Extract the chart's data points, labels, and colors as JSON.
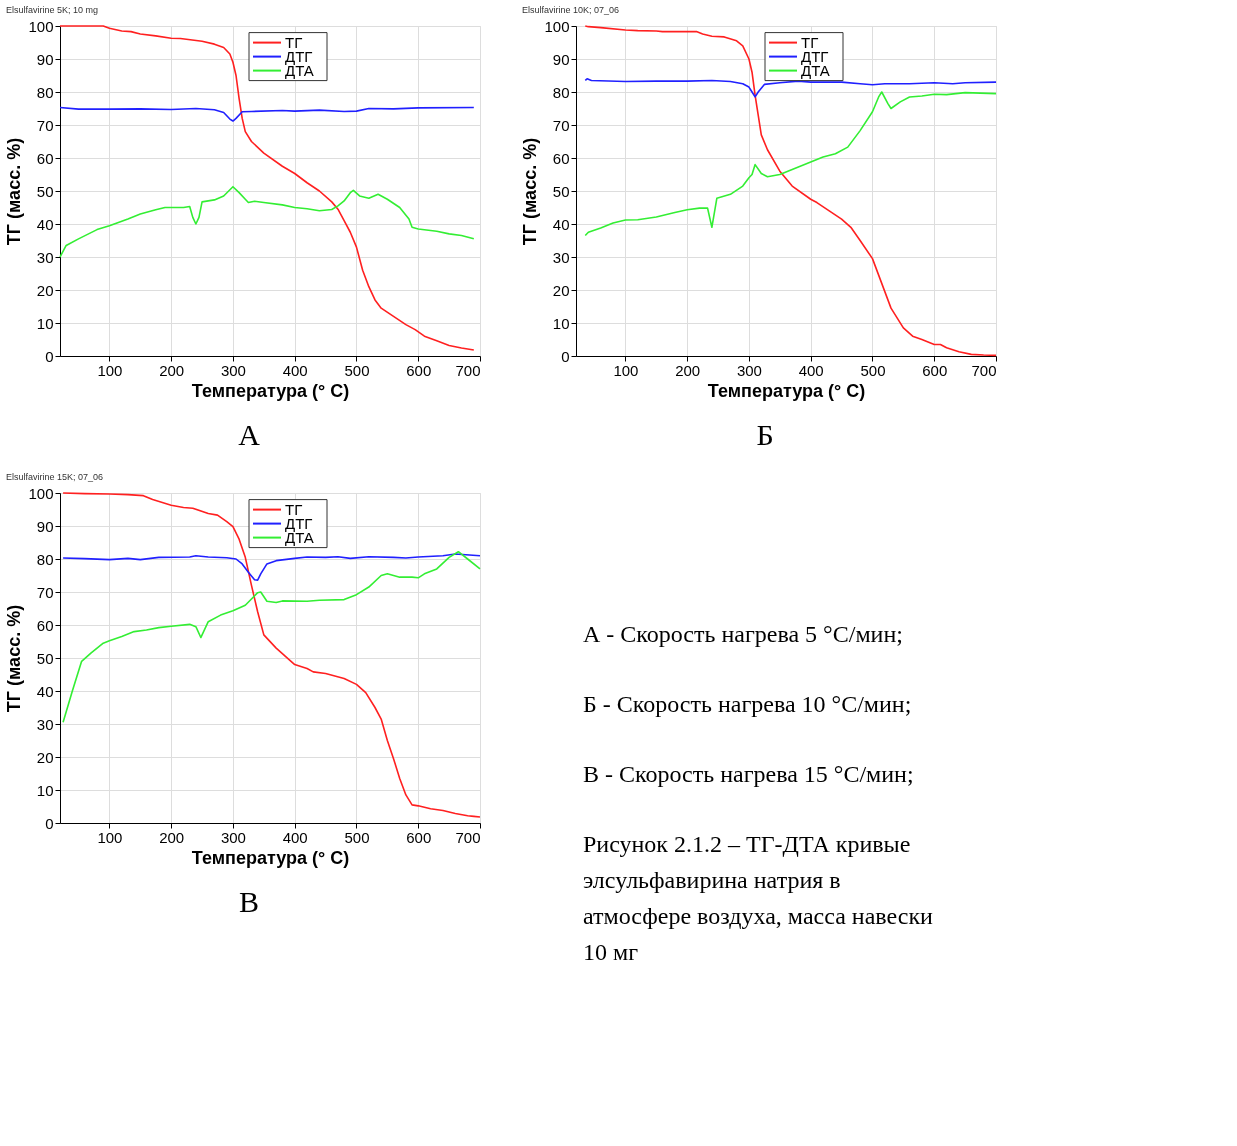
{
  "chart_data": [
    {
      "type": "line",
      "title": "Elsulfavirine 5K; 10 mg",
      "xlabel": "Температура (° C)",
      "ylabel": "ТГ (масс. %)",
      "xlim": [
        20,
        700
      ],
      "xticks": [
        100,
        200,
        300,
        400,
        500,
        600,
        700
      ],
      "ylim": [
        0,
        100
      ],
      "yticks": [
        0,
        10,
        20,
        30,
        40,
        50,
        60,
        70,
        80,
        90,
        100
      ],
      "grid": true,
      "legend": "top",
      "annotations": [
        "А"
      ],
      "series": [
        {
          "name": "ТГ",
          "color": "#ff2020",
          "x": [
            20,
            60,
            90,
            100,
            120,
            135,
            150,
            175,
            200,
            215,
            250,
            270,
            285,
            295,
            300,
            305,
            310,
            315,
            320,
            330,
            350,
            380,
            400,
            420,
            440,
            460,
            470,
            480,
            490,
            500,
            510,
            520,
            530,
            540,
            560,
            580,
            595,
            610,
            630,
            650,
            670,
            690
          ],
          "values": [
            100,
            100,
            100,
            99.3,
            98.5,
            98.3,
            97.6,
            97,
            96.3,
            96.2,
            95.4,
            94.5,
            93.5,
            91.5,
            89,
            85,
            78,
            72,
            68,
            65,
            61.5,
            57.5,
            55.3,
            52.5,
            50,
            46.7,
            44.5,
            41,
            37.5,
            33,
            26,
            21,
            17,
            14.5,
            12,
            9.5,
            8,
            6,
            4.6,
            3.2,
            2.4,
            1.8
          ]
        },
        {
          "name": "ДТГ",
          "color": "#2020ff",
          "x": [
            20,
            50,
            100,
            150,
            200,
            240,
            270,
            285,
            295,
            300,
            305,
            315,
            330,
            380,
            400,
            440,
            480,
            500,
            520,
            560,
            600,
            690
          ],
          "values": [
            75.3,
            74.8,
            74.8,
            74.9,
            74.7,
            75,
            74.6,
            73.8,
            71.8,
            71.2,
            72,
            74,
            74.1,
            74.4,
            74.2,
            74.5,
            74.1,
            74.2,
            75,
            74.9,
            75.2,
            75.3
          ]
        },
        {
          "name": "ДТА",
          "color": "#33ee33",
          "x": [
            20,
            30,
            50,
            80,
            100,
            130,
            150,
            175,
            190,
            220,
            230,
            235,
            240,
            245,
            250,
            270,
            285,
            300,
            310,
            320,
            325,
            335,
            350,
            380,
            400,
            420,
            440,
            460,
            470,
            480,
            490,
            495,
            505,
            520,
            535,
            550,
            570,
            585,
            590,
            600,
            630,
            650,
            670,
            690
          ],
          "values": [
            30,
            33.5,
            35.5,
            38.3,
            39.5,
            41.5,
            43,
            44.3,
            45,
            45,
            45.3,
            42,
            40,
            42,
            46.7,
            47.3,
            48.5,
            51.3,
            49.5,
            47.5,
            46.5,
            46.9,
            46.5,
            45.8,
            45,
            44.6,
            44,
            44.4,
            45.5,
            47,
            49.5,
            50.2,
            48.5,
            47.8,
            49,
            47.5,
            45,
            41.5,
            39,
            38.5,
            37.8,
            37,
            36.5,
            35.5
          ]
        }
      ]
    },
    {
      "type": "line",
      "title": "Elsulfavirine 10K; 07_06",
      "xlabel": "Температура (° C)",
      "ylabel": "ТГ (масс. %)",
      "xlim": [
        20,
        700
      ],
      "xticks": [
        100,
        200,
        300,
        400,
        500,
        600,
        700
      ],
      "ylim": [
        0,
        100
      ],
      "yticks": [
        0,
        10,
        20,
        30,
        40,
        50,
        60,
        70,
        80,
        90,
        100
      ],
      "grid": true,
      "legend": "top",
      "annotations": [
        "Б"
      ],
      "series": [
        {
          "name": "ТГ",
          "color": "#ff2020",
          "x": [
            35,
            40,
            60,
            100,
            120,
            150,
            160,
            200,
            215,
            225,
            240,
            260,
            280,
            290,
            300,
            305,
            310,
            315,
            320,
            330,
            350,
            370,
            400,
            410,
            430,
            450,
            465,
            480,
            500,
            510,
            520,
            530,
            550,
            565,
            580,
            600,
            610,
            620,
            640,
            660,
            680,
            700
          ],
          "values": [
            100,
            99.8,
            99.5,
            98.8,
            98.6,
            98.5,
            98.3,
            98.3,
            98.3,
            97.6,
            96.9,
            96.7,
            95.5,
            94,
            90,
            86,
            79,
            73,
            67,
            62.5,
            56,
            51.5,
            47.5,
            46.5,
            44,
            41.5,
            39,
            35,
            29.5,
            24.5,
            19.5,
            14.5,
            8.5,
            6,
            5,
            3.5,
            3.5,
            2.5,
            1.3,
            0.5,
            0.3,
            0.2
          ]
        },
        {
          "name": "ДТГ",
          "color": "#2020ff",
          "x": [
            35,
            38,
            45,
            100,
            150,
            200,
            240,
            270,
            290,
            300,
            305,
            310,
            315,
            325,
            350,
            380,
            400,
            450,
            480,
            500,
            520,
            560,
            600,
            630,
            650,
            700
          ],
          "values": [
            83.5,
            84,
            83.5,
            83.2,
            83.3,
            83.3,
            83.5,
            83.2,
            82.5,
            81.5,
            80,
            78.5,
            80,
            82.3,
            82.8,
            83.3,
            83,
            83,
            82.5,
            82.2,
            82.5,
            82.5,
            82.8,
            82.5,
            82.8,
            83
          ]
        },
        {
          "name": "ДТА",
          "color": "#33ee33",
          "x": [
            35,
            40,
            60,
            80,
            100,
            120,
            150,
            180,
            200,
            220,
            233,
            240,
            248,
            270,
            290,
            300,
            305,
            310,
            320,
            330,
            350,
            380,
            400,
            420,
            440,
            460,
            480,
            500,
            510,
            515,
            525,
            530,
            545,
            560,
            580,
            600,
            620,
            650,
            700
          ],
          "values": [
            36.5,
            37.5,
            38.8,
            40.3,
            41.2,
            41.3,
            42.1,
            43.5,
            44.3,
            44.8,
            44.8,
            39,
            47.8,
            49,
            51.5,
            54,
            55,
            58,
            55.3,
            54.3,
            55,
            57.3,
            58.8,
            60.3,
            61.3,
            63.3,
            68.3,
            74,
            78.5,
            80,
            76.5,
            75,
            77,
            78.5,
            78.8,
            79.3,
            79.2,
            79.8,
            79.5
          ]
        }
      ]
    },
    {
      "type": "line",
      "title": "Elsulfavirine 15K; 07_06",
      "xlabel": "Температура (° C)",
      "ylabel": "ТГ (масс. %)",
      "xlim": [
        20,
        700
      ],
      "xticks": [
        100,
        200,
        300,
        400,
        500,
        600,
        700
      ],
      "ylim": [
        0,
        100
      ],
      "yticks": [
        0,
        10,
        20,
        30,
        40,
        50,
        60,
        70,
        80,
        90,
        100
      ],
      "grid": true,
      "legend": "top",
      "annotations": [
        "В"
      ],
      "series": [
        {
          "name": "ТГ",
          "color": "#ff2020",
          "x": [
            25,
            60,
            100,
            130,
            155,
            170,
            200,
            220,
            235,
            260,
            275,
            290,
            300,
            310,
            320,
            330,
            340,
            350,
            370,
            400,
            420,
            430,
            450,
            480,
            500,
            515,
            530,
            540,
            550,
            560,
            570,
            580,
            590,
            600,
            620,
            640,
            660,
            680,
            690,
            700
          ],
          "values": [
            100,
            99.8,
            99.7,
            99.5,
            99.2,
            98,
            96.3,
            95.6,
            95.4,
            93.8,
            93.3,
            91.3,
            89.8,
            86,
            80.5,
            72,
            64,
            57,
            53,
            48,
            46.8,
            45.8,
            45.3,
            43.8,
            42,
            39.5,
            35,
            31.5,
            25,
            19.5,
            13.5,
            8.5,
            5.5,
            5.2,
            4.3,
            3.8,
            2.9,
            2.2,
            2,
            1.8
          ]
        },
        {
          "name": "ДТГ",
          "color": "#2020ff",
          "x": [
            25,
            60,
            100,
            130,
            150,
            180,
            230,
            240,
            260,
            290,
            305,
            315,
            325,
            335,
            340,
            345,
            355,
            370,
            400,
            420,
            450,
            470,
            490,
            520,
            560,
            580,
            600,
            640,
            660,
            700
          ],
          "values": [
            80.3,
            80.1,
            79.8,
            80.2,
            79.8,
            80.5,
            80.6,
            81,
            80.6,
            80.4,
            80,
            78.5,
            76,
            73.7,
            73.6,
            75.5,
            78.5,
            79.5,
            80.2,
            80.6,
            80.5,
            80.7,
            80.2,
            80.7,
            80.5,
            80.3,
            80.6,
            81,
            81.5,
            81
          ]
        },
        {
          "name": "ДТА",
          "color": "#33ee33",
          "x": [
            25,
            40,
            55,
            70,
            90,
            100,
            120,
            140,
            160,
            180,
            200,
            230,
            240,
            248,
            260,
            280,
            300,
            320,
            340,
            345,
            355,
            370,
            380,
            420,
            440,
            480,
            500,
            520,
            540,
            550,
            570,
            590,
            600,
            610,
            630,
            650,
            665,
            680,
            700
          ],
          "values": [
            30.5,
            40,
            49,
            51.5,
            54.5,
            55.2,
            56.5,
            58,
            58.5,
            59.2,
            59.6,
            60.2,
            59.5,
            56.2,
            61,
            63,
            64.3,
            66,
            69.8,
            70,
            67.2,
            66.8,
            67.3,
            67.2,
            67.5,
            67.7,
            69.2,
            71.5,
            75,
            75.5,
            74.5,
            74.5,
            74.3,
            75.5,
            77,
            80.5,
            82.2,
            80,
            77
          ]
        }
      ]
    },
    {
      "type": "other",
      "annotations": [
        "А - Скорость нагрева 5 °С/мин;",
        "Б - Скорость нагрева 10 °С/мин;",
        "В - Скорость нагрева 15 °С/мин;",
        "Рисунок 2.1.2 – ТГ-ДТА кривые элсульфавирина натрия в атмосфере воздуха, масса навески 10 мг"
      ]
    }
  ]
}
